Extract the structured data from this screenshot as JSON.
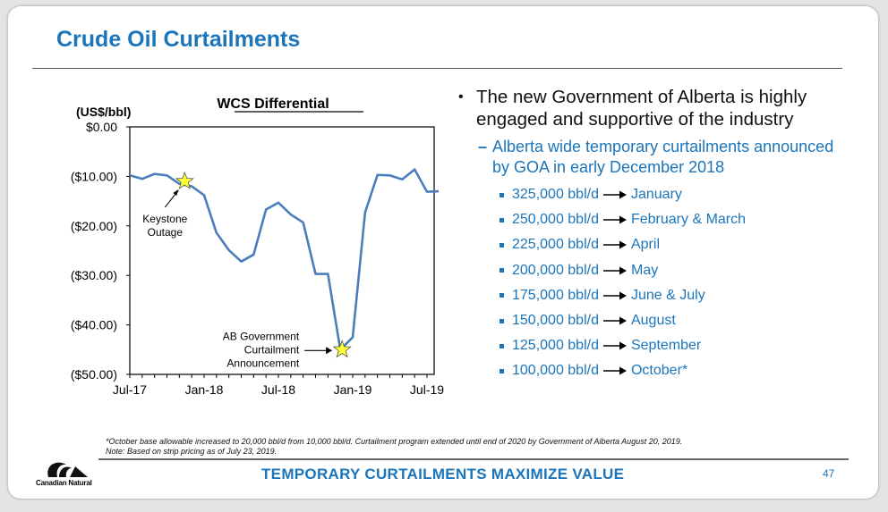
{
  "slide": {
    "title": "Crude Oil Curtailments",
    "footer": "TEMPORARY CURTAILMENTS MAXIMIZE VALUE",
    "page_number": "47",
    "logo_text": "Canadian Natural",
    "footnotes": [
      "*October base allowable increased to 20,000 bbl/d from 10,000 bbl/d. Curtailment program extended until end of 2020 by Government of Alberta August 20, 2019.",
      "Note: Based on strip pricing as of July 23, 2019."
    ]
  },
  "colors": {
    "accent": "#1b75bb",
    "series": "#4a7ebb",
    "marker": "#ffff33"
  },
  "bullets": {
    "main": "The new Government of Alberta is highly engaged and supportive of the industry",
    "sub": "Alberta wide temporary curtailments announced by GOA in early December 2018",
    "items": [
      {
        "volume": "325,000 bbl/d",
        "period": "January"
      },
      {
        "volume": "250,000 bbl/d",
        "period": "February & March"
      },
      {
        "volume": "225,000 bbl/d",
        "period": "April"
      },
      {
        "volume": "200,000 bbl/d",
        "period": "May"
      },
      {
        "volume": "175,000 bbl/d",
        "period": "June & July"
      },
      {
        "volume": "150,000 bbl/d",
        "period": "August"
      },
      {
        "volume": "125,000 bbl/d",
        "period": "September"
      },
      {
        "volume": "100,000 bbl/d",
        "period": "October*"
      }
    ]
  },
  "chart_data": {
    "type": "line",
    "title": "WCS Differential",
    "ylabel": "(US$/bbl)",
    "xlabel": "",
    "ylim": [
      -50,
      0
    ],
    "yticks": [
      0,
      -10,
      -20,
      -30,
      -40,
      -50
    ],
    "ytick_labels": [
      "$0.00",
      "($10.00)",
      "($20.00)",
      "($30.00)",
      "($40.00)",
      "($50.00)"
    ],
    "xtick_labels": [
      "Jul-17",
      "Jan-18",
      "Jul-18",
      "Jan-19",
      "Jul-19"
    ],
    "x": [
      "Jul-17",
      "Aug-17",
      "Sep-17",
      "Oct-17",
      "Nov-17",
      "Dec-17",
      "Jan-18",
      "Feb-18",
      "Mar-18",
      "Apr-18",
      "May-18",
      "Jun-18",
      "Jul-18",
      "Aug-18",
      "Sep-18",
      "Oct-18",
      "Nov-18",
      "Dec-18",
      "Jan-19",
      "Feb-19",
      "Mar-19",
      "Apr-19",
      "May-19",
      "Jun-19",
      "Jul-19"
    ],
    "series": [
      {
        "values": [
          -9.8,
          -10.5,
          -9.5,
          -9.8,
          -11.5,
          -12.0,
          -13.8,
          -21.4,
          -24.9,
          -27.2,
          -25.8,
          -16.7,
          -15.3,
          -17.7,
          -19.3,
          -29.7,
          -29.7,
          -45.0,
          -42.5,
          -17.3,
          -9.7,
          -9.8,
          -10.6,
          -8.6,
          -13.1
        ]
      }
    ],
    "x_extra": "Jul-19",
    "x_extra_value": -13.0,
    "annotations": [
      {
        "text": [
          "Keystone",
          "Outage"
        ],
        "at": "Nov-17",
        "value": -11.0
      },
      {
        "text": [
          "AB Government",
          "Curtailment",
          "Announcement"
        ],
        "at": "Dec-18",
        "value": -45.0
      }
    ],
    "grid": false,
    "legend": "none"
  }
}
